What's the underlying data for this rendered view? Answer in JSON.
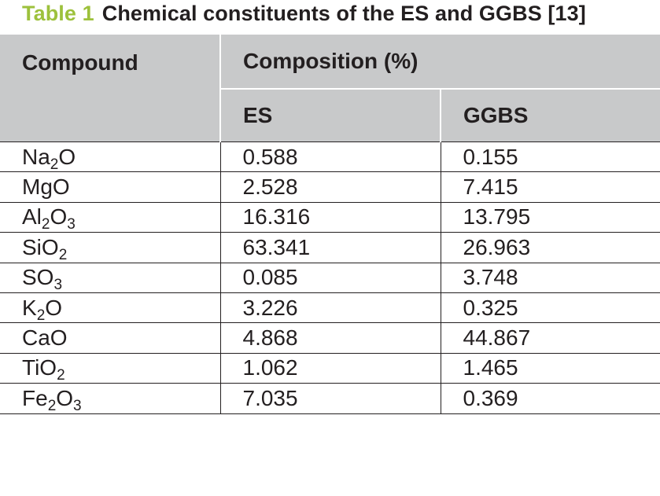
{
  "caption": {
    "label": "Table 1",
    "title": "Chemical constituents of the ES and GGBS [13]"
  },
  "header": {
    "compound": "Compound",
    "composition": "Composition (%)",
    "es": "ES",
    "ggbs": "GGBS"
  },
  "rows": [
    {
      "parts": [
        [
          "Na",
          ""
        ],
        [
          "2",
          "sub"
        ],
        [
          "O",
          ""
        ]
      ],
      "es": "0.588",
      "ggbs": "0.155"
    },
    {
      "parts": [
        [
          "MgO",
          ""
        ]
      ],
      "es": "2.528",
      "ggbs": "7.415"
    },
    {
      "parts": [
        [
          "Al",
          ""
        ],
        [
          "2",
          "sub"
        ],
        [
          "O",
          ""
        ],
        [
          "3",
          "sub"
        ]
      ],
      "es": "16.316",
      "ggbs": "13.795"
    },
    {
      "parts": [
        [
          "SiO",
          ""
        ],
        [
          "2",
          "sub"
        ]
      ],
      "es": "63.341",
      "ggbs": "26.963"
    },
    {
      "parts": [
        [
          "SO",
          ""
        ],
        [
          "3",
          "sub"
        ]
      ],
      "es": "0.085",
      "ggbs": "3.748"
    },
    {
      "parts": [
        [
          "K",
          ""
        ],
        [
          "2",
          "sub"
        ],
        [
          "O",
          ""
        ]
      ],
      "es": "3.226",
      "ggbs": "0.325"
    },
    {
      "parts": [
        [
          "CaO",
          ""
        ]
      ],
      "es": "4.868",
      "ggbs": "44.867"
    },
    {
      "parts": [
        [
          "TiO",
          ""
        ],
        [
          "2",
          "sub"
        ]
      ],
      "es": "1.062",
      "ggbs": "1.465"
    },
    {
      "parts": [
        [
          "Fe",
          ""
        ],
        [
          "2",
          "sub"
        ],
        [
          "O",
          ""
        ],
        [
          "3",
          "sub"
        ]
      ],
      "es": "7.035",
      "ggbs": "0.369"
    }
  ]
}
